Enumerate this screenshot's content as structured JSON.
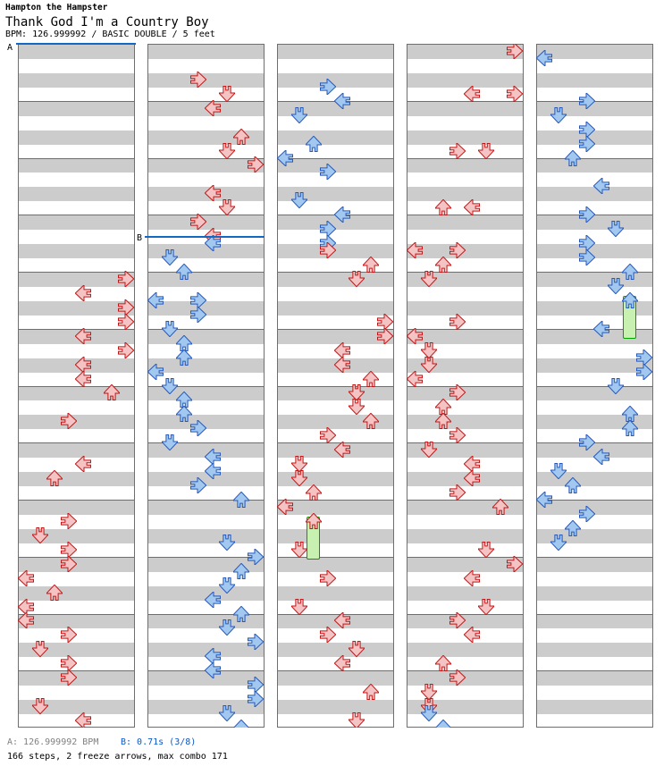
{
  "header": {
    "artist": "Hampton the Hampster",
    "title": "Thank God I'm a Country Boy",
    "info": "BPM: 126.999992 / BASIC DOUBLE / 5 feet"
  },
  "markers": {
    "a": "A",
    "b": "B"
  },
  "footer": {
    "a": "A: 126.999992 BPM",
    "b": "B: 0.71s (3/8)",
    "summary": "166 steps, 2 freeze arrows, max combo 171"
  },
  "colors": {
    "stripe_gray": "#cccccc",
    "border": "#6e6e6e",
    "marker_line_blue": "#1268c3",
    "red_stroke": "#c41414",
    "red_fill": "#f4c4c4",
    "blue_stroke": "#2458bc",
    "blue_fill": "#a2c8ef",
    "freeze_stroke": "#00a000",
    "freeze_fill": "#c8f0b0",
    "footer_a_gray": "#808080",
    "footer_b_blue": "#0a58c8"
  },
  "chart_data": {
    "type": "ddr-step-chart",
    "lanes": [
      "L1",
      "D1",
      "U1",
      "R1",
      "L2",
      "D2",
      "U2",
      "R2"
    ],
    "note_format": "[lane, eighth_row, color r|b]",
    "columns": [
      {
        "notes": [
          [
            7,
            33,
            "r"
          ],
          [
            4,
            35,
            "r"
          ],
          [
            7,
            37,
            "r"
          ],
          [
            7,
            39,
            "r"
          ],
          [
            4,
            41,
            "r"
          ],
          [
            7,
            43,
            "r"
          ],
          [
            4,
            45,
            "r"
          ],
          [
            4,
            47,
            "r"
          ],
          [
            6,
            49,
            "r"
          ],
          [
            3,
            53,
            "r"
          ],
          [
            4,
            59,
            "r"
          ],
          [
            2,
            61,
            "r"
          ],
          [
            3,
            67,
            "r"
          ],
          [
            1,
            69,
            "r"
          ],
          [
            3,
            71,
            "r"
          ],
          [
            3,
            73,
            "r"
          ],
          [
            0,
            75,
            "r"
          ],
          [
            2,
            77,
            "r"
          ],
          [
            0,
            79,
            "r"
          ],
          [
            0,
            81,
            "r"
          ],
          [
            3,
            83,
            "r"
          ],
          [
            1,
            85,
            "r"
          ],
          [
            3,
            87,
            "r"
          ],
          [
            3,
            89,
            "r"
          ],
          [
            1,
            93,
            "r"
          ],
          [
            4,
            95,
            "r"
          ]
        ],
        "freezes": []
      },
      {
        "notes": [
          [
            3,
            5,
            "r"
          ],
          [
            5,
            7,
            "r"
          ],
          [
            4,
            9,
            "r"
          ],
          [
            6,
            13,
            "r"
          ],
          [
            5,
            15,
            "r"
          ],
          [
            7,
            17,
            "r"
          ],
          [
            4,
            21,
            "r"
          ],
          [
            5,
            23,
            "r"
          ],
          [
            3,
            25,
            "r"
          ],
          [
            4,
            27,
            "r"
          ],
          [
            4,
            28,
            "b"
          ],
          [
            1,
            30,
            "b"
          ],
          [
            2,
            32,
            "b"
          ],
          [
            0,
            36,
            "b"
          ],
          [
            3,
            36,
            "b"
          ],
          [
            3,
            38,
            "b"
          ],
          [
            1,
            40,
            "b"
          ],
          [
            2,
            42,
            "b"
          ],
          [
            2,
            44,
            "b"
          ],
          [
            0,
            46,
            "b"
          ],
          [
            1,
            48,
            "b"
          ],
          [
            2,
            50,
            "b"
          ],
          [
            2,
            52,
            "b"
          ],
          [
            3,
            54,
            "b"
          ],
          [
            1,
            56,
            "b"
          ],
          [
            4,
            58,
            "b"
          ],
          [
            4,
            60,
            "b"
          ],
          [
            3,
            62,
            "b"
          ],
          [
            6,
            64,
            "b"
          ],
          [
            5,
            70,
            "b"
          ],
          [
            7,
            72,
            "b"
          ],
          [
            6,
            74,
            "b"
          ],
          [
            5,
            76,
            "b"
          ],
          [
            4,
            78,
            "b"
          ],
          [
            6,
            80,
            "b"
          ],
          [
            5,
            82,
            "b"
          ],
          [
            7,
            84,
            "b"
          ],
          [
            4,
            86,
            "b"
          ],
          [
            4,
            88,
            "b"
          ],
          [
            7,
            90,
            "b"
          ],
          [
            7,
            92,
            "b"
          ],
          [
            5,
            94,
            "b"
          ],
          [
            6,
            96,
            "b"
          ]
        ],
        "freezes": []
      },
      {
        "notes": [
          [
            3,
            6,
            "b"
          ],
          [
            4,
            8,
            "b"
          ],
          [
            1,
            10,
            "b"
          ],
          [
            2,
            14,
            "b"
          ],
          [
            0,
            16,
            "b"
          ],
          [
            3,
            18,
            "b"
          ],
          [
            1,
            22,
            "b"
          ],
          [
            4,
            24,
            "b"
          ],
          [
            3,
            26,
            "b"
          ],
          [
            3,
            28,
            "b"
          ],
          [
            3,
            29,
            "r"
          ],
          [
            6,
            31,
            "r"
          ],
          [
            5,
            33,
            "r"
          ],
          [
            7,
            39,
            "r"
          ],
          [
            7,
            41,
            "r"
          ],
          [
            4,
            43,
            "r"
          ],
          [
            4,
            45,
            "r"
          ],
          [
            6,
            47,
            "r"
          ],
          [
            5,
            49,
            "r"
          ],
          [
            5,
            51,
            "r"
          ],
          [
            6,
            53,
            "r"
          ],
          [
            3,
            55,
            "r"
          ],
          [
            4,
            57,
            "r"
          ],
          [
            1,
            59,
            "r"
          ],
          [
            1,
            61,
            "r"
          ],
          [
            2,
            63,
            "r"
          ],
          [
            0,
            65,
            "r"
          ],
          [
            1,
            71,
            "r"
          ],
          [
            3,
            75,
            "r"
          ],
          [
            1,
            79,
            "r"
          ],
          [
            4,
            81,
            "r"
          ],
          [
            3,
            83,
            "r"
          ],
          [
            5,
            85,
            "r"
          ],
          [
            4,
            87,
            "r"
          ],
          [
            6,
            91,
            "r"
          ],
          [
            5,
            95,
            "r"
          ]
        ],
        "freezes": [
          [
            2,
            67,
            72,
            "r"
          ]
        ]
      },
      {
        "notes": [
          [
            7,
            1,
            "r"
          ],
          [
            4,
            7,
            "r"
          ],
          [
            7,
            7,
            "r"
          ],
          [
            3,
            15,
            "r"
          ],
          [
            5,
            15,
            "r"
          ],
          [
            2,
            23,
            "r"
          ],
          [
            4,
            23,
            "r"
          ],
          [
            0,
            29,
            "r"
          ],
          [
            3,
            29,
            "r"
          ],
          [
            2,
            31,
            "r"
          ],
          [
            1,
            33,
            "r"
          ],
          [
            3,
            39,
            "r"
          ],
          [
            0,
            41,
            "r"
          ],
          [
            1,
            43,
            "r"
          ],
          [
            1,
            45,
            "r"
          ],
          [
            0,
            47,
            "r"
          ],
          [
            3,
            49,
            "r"
          ],
          [
            2,
            51,
            "r"
          ],
          [
            2,
            53,
            "r"
          ],
          [
            3,
            55,
            "r"
          ],
          [
            1,
            57,
            "r"
          ],
          [
            4,
            59,
            "r"
          ],
          [
            4,
            61,
            "r"
          ],
          [
            3,
            63,
            "r"
          ],
          [
            6,
            65,
            "r"
          ],
          [
            5,
            71,
            "r"
          ],
          [
            7,
            73,
            "r"
          ],
          [
            4,
            75,
            "r"
          ],
          [
            5,
            79,
            "r"
          ],
          [
            3,
            81,
            "r"
          ],
          [
            4,
            83,
            "r"
          ],
          [
            2,
            87,
            "r"
          ],
          [
            3,
            89,
            "r"
          ],
          [
            1,
            91,
            "r"
          ],
          [
            1,
            93,
            "r"
          ],
          [
            1,
            94,
            "b"
          ],
          [
            2,
            96,
            "b"
          ]
        ],
        "freezes": []
      },
      {
        "notes": [
          [
            0,
            2,
            "b"
          ],
          [
            3,
            8,
            "b"
          ],
          [
            1,
            10,
            "b"
          ],
          [
            3,
            12,
            "b"
          ],
          [
            3,
            14,
            "b"
          ],
          [
            2,
            16,
            "b"
          ],
          [
            4,
            20,
            "b"
          ],
          [
            3,
            24,
            "b"
          ],
          [
            5,
            26,
            "b"
          ],
          [
            3,
            28,
            "b"
          ],
          [
            3,
            30,
            "b"
          ],
          [
            6,
            32,
            "b"
          ],
          [
            5,
            34,
            "b"
          ],
          [
            4,
            40,
            "b"
          ],
          [
            7,
            44,
            "b"
          ],
          [
            7,
            46,
            "b"
          ],
          [
            5,
            48,
            "b"
          ],
          [
            6,
            52,
            "b"
          ],
          [
            6,
            54,
            "b"
          ],
          [
            3,
            56,
            "b"
          ],
          [
            4,
            58,
            "b"
          ],
          [
            1,
            60,
            "b"
          ],
          [
            2,
            62,
            "b"
          ],
          [
            0,
            64,
            "b"
          ],
          [
            3,
            66,
            "b"
          ],
          [
            2,
            68,
            "b"
          ],
          [
            1,
            70,
            "b"
          ]
        ],
        "freezes": [
          [
            6,
            36,
            41,
            "b"
          ]
        ]
      }
    ],
    "marker_a": {
      "column": 0,
      "row": 0
    },
    "marker_b": {
      "column": 1,
      "row": 27
    }
  }
}
